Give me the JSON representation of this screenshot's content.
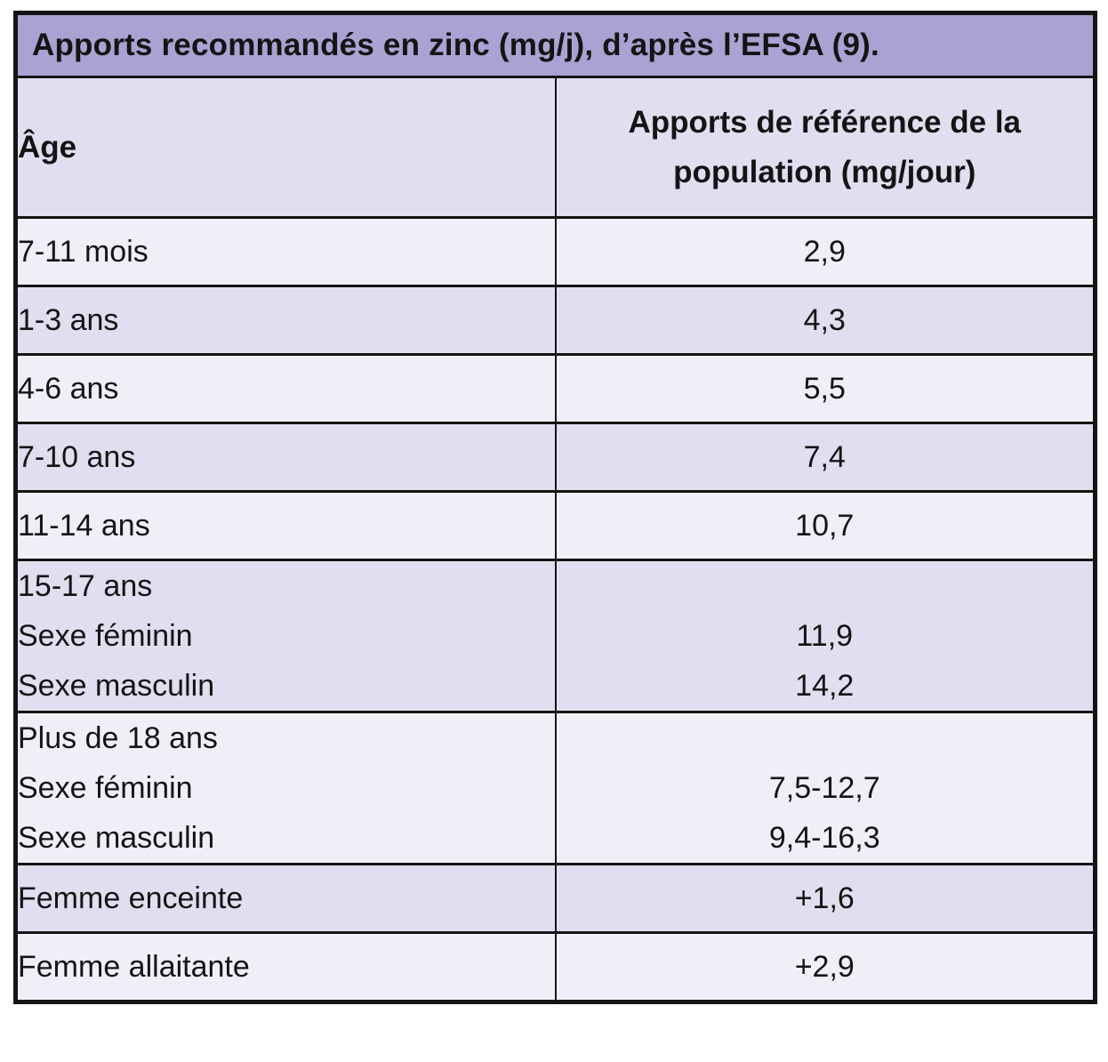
{
  "colors": {
    "title_bg": "#a8a3d2",
    "header_bg": "#e0deef",
    "row_light": "#f0eff8",
    "row_dark": "#e0deef",
    "border": "#141414",
    "text": "#141414"
  },
  "table": {
    "title": "Apports recommandés en zinc (mg/j), d’après l’EFSA (9).",
    "headers": {
      "age": "Âge",
      "reference": "Apports de référence de la population (mg/jour)"
    },
    "rows": [
      {
        "age": [
          "7-11 mois"
        ],
        "values": [
          "2,9"
        ],
        "shade": "light"
      },
      {
        "age": [
          "1-3 ans"
        ],
        "values": [
          "4,3"
        ],
        "shade": "dark"
      },
      {
        "age": [
          "4-6 ans"
        ],
        "values": [
          "5,5"
        ],
        "shade": "light"
      },
      {
        "age": [
          "7-10 ans"
        ],
        "values": [
          "7,4"
        ],
        "shade": "dark"
      },
      {
        "age": [
          "11-14 ans"
        ],
        "values": [
          "10,7"
        ],
        "shade": "light"
      },
      {
        "age": [
          "15-17 ans",
          "Sexe féminin",
          "Sexe masculin"
        ],
        "values": [
          "",
          "11,9",
          "14,2"
        ],
        "shade": "dark"
      },
      {
        "age": [
          "Plus de 18 ans",
          "Sexe féminin",
          "Sexe masculin"
        ],
        "values": [
          "",
          "7,5-12,7",
          "9,4-16,3"
        ],
        "shade": "light"
      },
      {
        "age": [
          "Femme enceinte"
        ],
        "values": [
          "+1,6"
        ],
        "shade": "dark"
      },
      {
        "age": [
          "Femme allaitante"
        ],
        "values": [
          "+2,9"
        ],
        "shade": "light"
      }
    ]
  }
}
